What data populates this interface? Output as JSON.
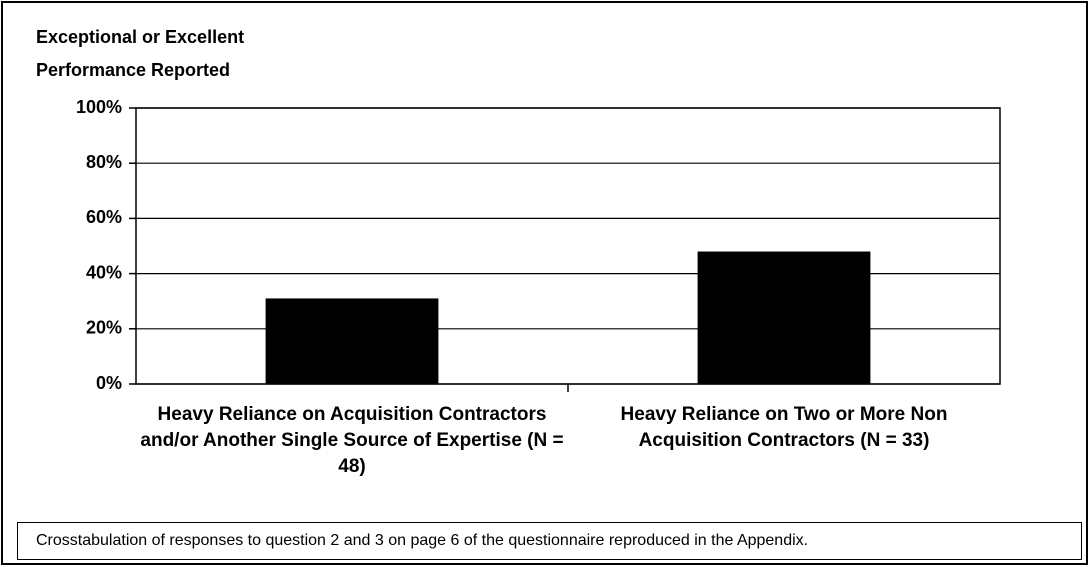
{
  "chart_data": {
    "type": "bar",
    "ylabel_lines": [
      "Exceptional or Excellent",
      "Performance Reported"
    ],
    "categories": [
      "Heavy Reliance on Acquisition Contractors and/or Another Single Source of Expertise (N = 48)",
      "Heavy Reliance on Two or More Non Acquisition Contractors (N = 33)"
    ],
    "values": [
      31,
      48
    ],
    "color": "#000000",
    "ylim": [
      0,
      100
    ],
    "yticks": [
      {
        "value": 0,
        "label": "0%"
      },
      {
        "value": 20,
        "label": "20%"
      },
      {
        "value": 40,
        "label": "40%"
      },
      {
        "value": 60,
        "label": "60%"
      },
      {
        "value": 80,
        "label": "80%"
      },
      {
        "value": 100,
        "label": "100%"
      }
    ],
    "grid": true,
    "note": "Crosstabulation of responses to question 2 and 3 on page 6 of the questionnaire reproduced in the Appendix."
  }
}
